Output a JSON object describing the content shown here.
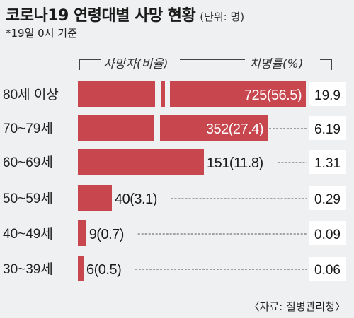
{
  "title": "코로나19 연령대별 사망 현황",
  "unit_note": "(단위: 명)",
  "footnote": "*19일 0시 기준",
  "source": "〈자료: 질병관리청〉",
  "colors": {
    "bar": "#c8474f",
    "background": "#eef0f1",
    "rate_box": "#ffffff"
  },
  "chart_data": {
    "type": "bar",
    "orientation": "horizontal",
    "column_headers": [
      "사망자(비율)",
      "치명률(%)"
    ],
    "categories": [
      "80세 이상",
      "70~79세",
      "60~69세",
      "50~59세",
      "40~49세",
      "30~39세"
    ],
    "series": [
      {
        "name": "사망자(비율)",
        "values": [
          725,
          352,
          151,
          40,
          9,
          6
        ],
        "labels": [
          "725(56.5)",
          "352(27.4)",
          "151(11.8)",
          "40(3.1)",
          "9(0.7)",
          "6(0.5)"
        ]
      },
      {
        "name": "치명률(%)",
        "values": [
          19.9,
          6.19,
          1.31,
          0.29,
          0.09,
          0.06
        ],
        "labels": [
          "19.9",
          "6.19",
          "1.31",
          "0.29",
          "0.09",
          "0.06"
        ]
      }
    ],
    "axis_break": true
  }
}
